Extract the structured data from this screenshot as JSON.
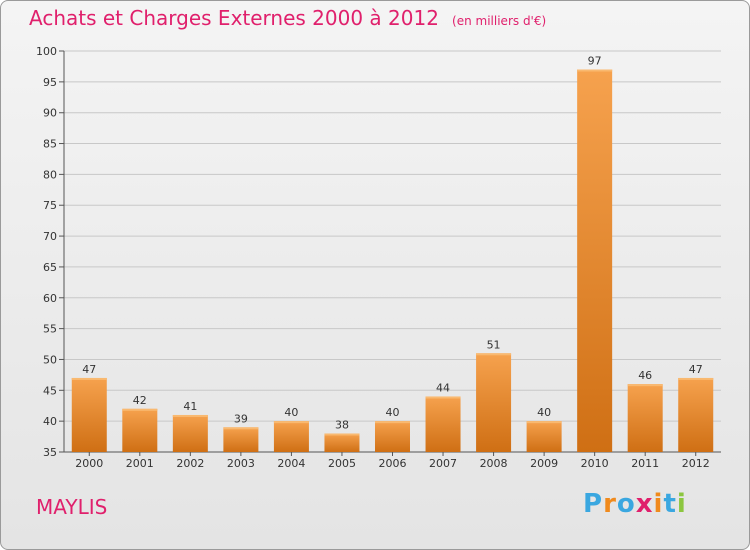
{
  "header": {
    "title": "Achats et Charges Externes 2000 à 2012",
    "unit": "(en milliers d'€)"
  },
  "footer": {
    "city": "MAYLIS",
    "logo": {
      "text": "Proxiti",
      "letter_colors": [
        "#3aa7e0",
        "#f08a1c",
        "#3aa7e0",
        "#e0206c",
        "#f08a1c",
        "#3aa7e0",
        "#8cc63f"
      ]
    }
  },
  "colors": {
    "title": "#e0206c",
    "bar_top": "#f6a24e",
    "bar_bottom": "#cf6f14",
    "grid": "#c8c8c8"
  },
  "chart_data": {
    "type": "bar",
    "title": "Achats et Charges Externes 2000 à 2012",
    "subtitle": "(en milliers d'€)",
    "categories": [
      "2000",
      "2001",
      "2002",
      "2003",
      "2004",
      "2005",
      "2006",
      "2007",
      "2008",
      "2009",
      "2010",
      "2011",
      "2012"
    ],
    "values": [
      47,
      42,
      41,
      39,
      40,
      38,
      40,
      44,
      51,
      40,
      97,
      46,
      47
    ],
    "ylim": [
      35,
      100
    ],
    "yticks": [
      35,
      40,
      45,
      50,
      55,
      60,
      65,
      70,
      75,
      80,
      85,
      90,
      95,
      100
    ],
    "grid": true,
    "data_labels": true,
    "legend": "none"
  }
}
